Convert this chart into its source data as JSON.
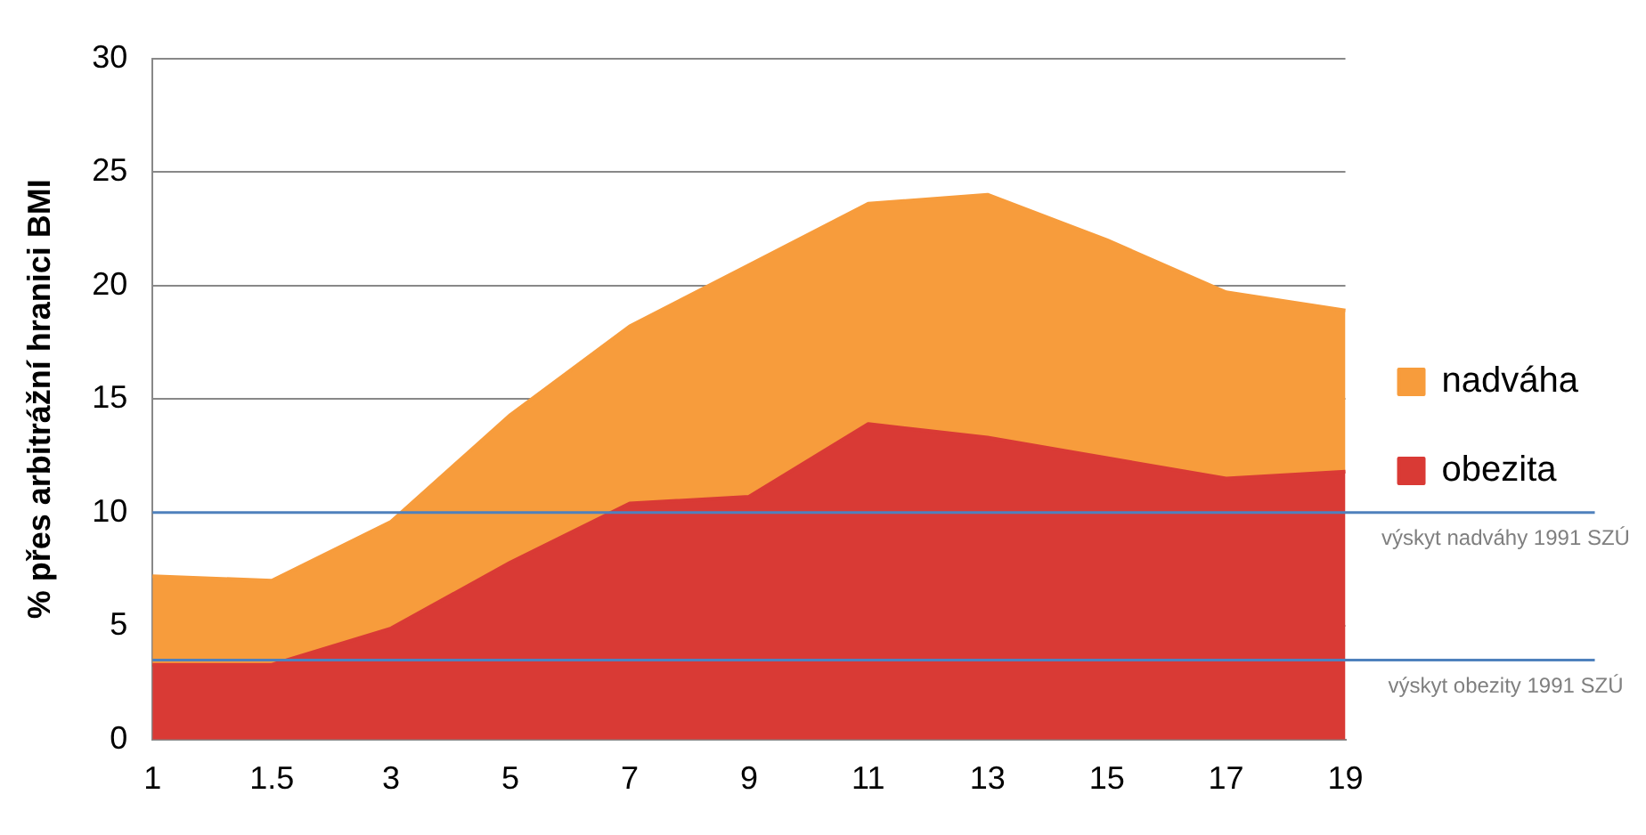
{
  "chart_data": {
    "type": "area",
    "stacked": true,
    "ylabel": "% přes arbitrážní hranici BMI",
    "categories": [
      "1",
      "1.5",
      "3",
      "5",
      "7",
      "9",
      "11",
      "13",
      "15",
      "17",
      "19"
    ],
    "series": [
      {
        "name": "obezita",
        "color": "#d93a35",
        "values": [
          3.3,
          3.3,
          4.9,
          7.8,
          10.4,
          10.7,
          13.9,
          13.3,
          12.4,
          11.5,
          11.8
        ]
      },
      {
        "name": "nadváha",
        "color": "#f79c3c",
        "values": [
          3.9,
          3.7,
          4.7,
          6.5,
          7.8,
          10.2,
          9.7,
          10.7,
          9.6,
          8.2,
          7.1
        ]
      }
    ],
    "ylim": [
      0,
      30
    ],
    "yticks": [
      0,
      5,
      10,
      15,
      20,
      25,
      30
    ],
    "grid": "y",
    "legend": "right",
    "ref_lines": [
      {
        "axis": "y",
        "value": 10,
        "label": "výskyt nadváhy 1991 SZÚ",
        "color": "#4f81bd"
      },
      {
        "axis": "y",
        "value": 3.5,
        "label": "výskyt obezity 1991 SZÚ",
        "color": "#4f81bd"
      }
    ]
  }
}
